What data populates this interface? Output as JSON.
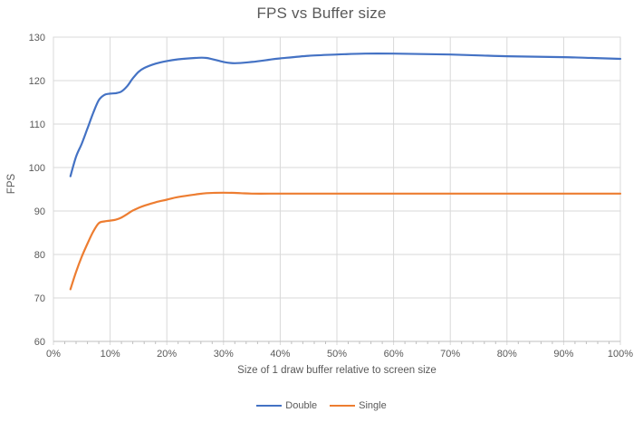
{
  "chart_data": {
    "type": "line",
    "title": "FPS vs Buffer size",
    "xlabel": "Size of 1 draw buffer relative to screen size",
    "ylabel": "FPS",
    "xlim": [
      0,
      100
    ],
    "ylim": [
      60,
      130
    ],
    "x_ticks": [
      0,
      10,
      20,
      30,
      40,
      50,
      60,
      70,
      80,
      90,
      100
    ],
    "x_tick_labels": [
      "0%",
      "10%",
      "20%",
      "30%",
      "40%",
      "50%",
      "60%",
      "70%",
      "80%",
      "90%",
      "100%"
    ],
    "x_minor_tick_step": 2,
    "y_ticks": [
      60,
      70,
      80,
      90,
      100,
      110,
      120,
      130
    ],
    "grid": "both",
    "legend_position": "bottom",
    "colors": {
      "gridline": "#d9d9d9",
      "axis_line": "#bfbfbf",
      "tick_label": "#595959",
      "title": "#595959"
    },
    "series": [
      {
        "name": "Double",
        "color": "#4472C4",
        "x": [
          3,
          4,
          5,
          6,
          7,
          8,
          9,
          10,
          11,
          12,
          13,
          14,
          15,
          16,
          18,
          20,
          22,
          25,
          27,
          30,
          32,
          35,
          38,
          40,
          45,
          50,
          55,
          60,
          65,
          70,
          75,
          80,
          85,
          90,
          95,
          100
        ],
        "y": [
          98,
          102.5,
          105.5,
          109,
          112.5,
          115.5,
          116.7,
          117,
          117.1,
          117.5,
          118.7,
          120.5,
          122,
          122.9,
          123.9,
          124.5,
          124.9,
          125.2,
          125.2,
          124.3,
          124,
          124.3,
          124.8,
          125.1,
          125.7,
          126,
          126.2,
          126.2,
          126.1,
          126,
          125.8,
          125.6,
          125.5,
          125.4,
          125.2,
          125
        ]
      },
      {
        "name": "Single",
        "color": "#ED7D31",
        "x": [
          3,
          4,
          5,
          6,
          7,
          8,
          9,
          10,
          11,
          12,
          13,
          14,
          15,
          16,
          18,
          20,
          22,
          25,
          27,
          30,
          33,
          35,
          40,
          45,
          50,
          55,
          60,
          65,
          70,
          75,
          80,
          85,
          90,
          95,
          100
        ],
        "y": [
          72,
          76,
          79.5,
          82.5,
          85.2,
          87.2,
          87.6,
          87.8,
          88,
          88.5,
          89.3,
          90.1,
          90.7,
          91.2,
          92,
          92.6,
          93.2,
          93.8,
          94.1,
          94.2,
          94.1,
          94,
          94,
          94,
          94,
          94,
          94,
          94,
          94,
          94,
          94,
          94,
          94,
          94,
          94
        ]
      }
    ]
  }
}
